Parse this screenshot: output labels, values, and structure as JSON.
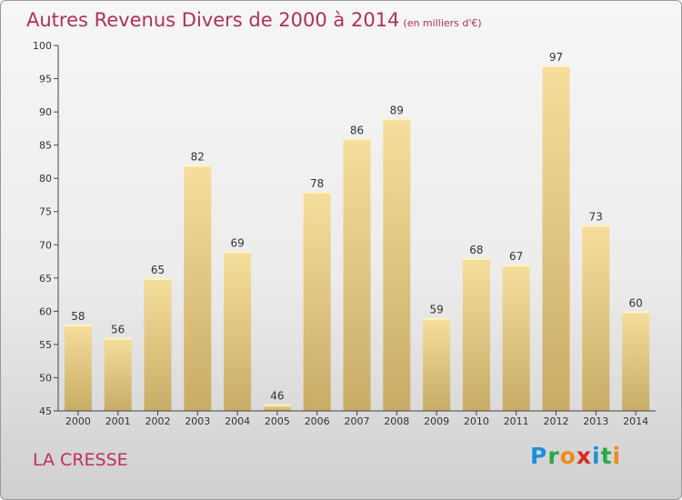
{
  "title": "Autres Revenus Divers de 2000 à 2014",
  "subtitle": "(en milliers d'€)",
  "location_label": "LA CRESSE",
  "logo": {
    "letters": [
      "P",
      "r",
      "o",
      "x",
      "i",
      "t",
      "i"
    ],
    "colors": [
      "#1e8fd8",
      "#2aa84a",
      "#f08a1c",
      "#d8282a",
      "#1e8fd8",
      "#2aa84a",
      "#f08a1c"
    ]
  },
  "colors": {
    "bar_top": "#f6de9c",
    "bar_bottom": "#c8ac66",
    "title": "#b0305a",
    "axis": "#444444"
  },
  "chart_data": {
    "type": "bar",
    "title": "Autres Revenus Divers de 2000 à 2014",
    "subtitle": "(en milliers d'€)",
    "categories": [
      "2000",
      "2001",
      "2002",
      "2003",
      "2004",
      "2005",
      "2006",
      "2007",
      "2008",
      "2009",
      "2010",
      "2011",
      "2012",
      "2013",
      "2014"
    ],
    "values": [
      58,
      56,
      65,
      82,
      69,
      46,
      78,
      86,
      89,
      59,
      68,
      67,
      97,
      73,
      60
    ],
    "ylim": [
      45,
      100
    ],
    "yticks": [
      45,
      50,
      55,
      60,
      65,
      70,
      75,
      80,
      85,
      90,
      95,
      100
    ],
    "grid": false,
    "data_labels": true
  }
}
